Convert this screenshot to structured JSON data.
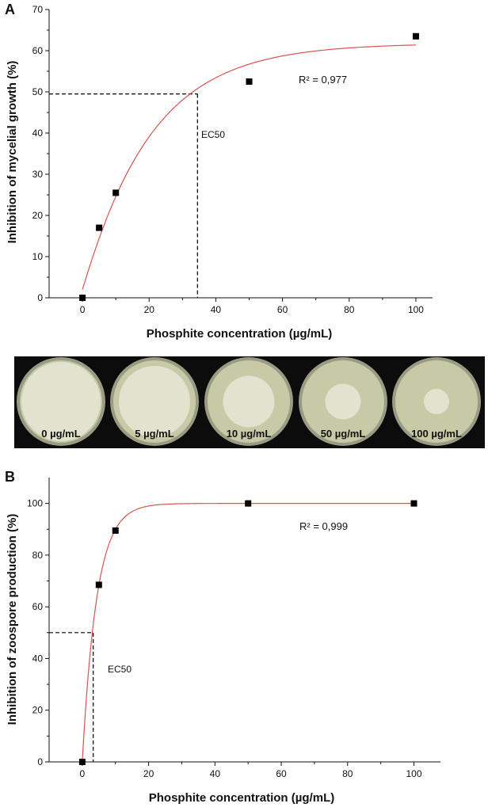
{
  "chart_data": [
    {
      "panel": "A",
      "type": "scatter",
      "x": [
        0,
        5,
        10,
        50,
        100
      ],
      "y": [
        0,
        17,
        25.5,
        52.5,
        63.5
      ],
      "xlabel": "Phosphite concentration (µg/mL)",
      "ylabel": "Inhibition of mycelial growth (%)",
      "xlim": [
        -10,
        105
      ],
      "ylim": [
        0,
        70
      ],
      "xticks": [
        0,
        20,
        40,
        60,
        80,
        100
      ],
      "yticks": [
        0,
        10,
        20,
        30,
        40,
        50,
        60,
        70
      ],
      "fit": {
        "type": "exponential",
        "ymax": 61.8,
        "k": 0.05
      },
      "r2_label": "R² = 0,977",
      "ec50_label": "EC50",
      "ec50": {
        "x": 34.5,
        "y": 49.5
      },
      "colors": {
        "points": "#000000",
        "fit": "#d9534f",
        "dashed": "#000000"
      }
    },
    {
      "panel": "B",
      "type": "scatter",
      "x": [
        0,
        5,
        10,
        50,
        100
      ],
      "y": [
        0,
        68.5,
        89.5,
        100,
        100
      ],
      "xlabel": "Phosphite concentration (µg/mL)",
      "ylabel": "Inhibition of zoospore production (%)",
      "xlim": [
        -10,
        108
      ],
      "ylim": [
        0,
        110
      ],
      "xticks": [
        0,
        20,
        40,
        60,
        80,
        100
      ],
      "yticks": [
        0,
        20,
        40,
        60,
        80,
        100
      ],
      "fit": {
        "type": "exponential",
        "ymax": 100,
        "k": 0.23
      },
      "r2_label": "R² = 0,999",
      "ec50_label": "EC50",
      "ec50": {
        "x": 3.3,
        "y": 50
      },
      "colors": {
        "points": "#000000",
        "fit": "#d9534f",
        "dashed": "#000000"
      }
    }
  ],
  "photo_strip": {
    "dishes": [
      {
        "label": "0 µg/mL",
        "colony_fraction": 1.0
      },
      {
        "label": "5 µg/mL",
        "colony_fraction": 0.9
      },
      {
        "label": "10 µg/mL",
        "colony_fraction": 0.65
      },
      {
        "label": "50 µg/mL",
        "colony_fraction": 0.45
      },
      {
        "label": "100 µg/mL",
        "colony_fraction": 0.32
      }
    ],
    "colors": {
      "background": "#0c0c0c",
      "agar": "#c8c9a6",
      "colony": "#e6e7d6",
      "rim": "#9a9b84"
    }
  }
}
